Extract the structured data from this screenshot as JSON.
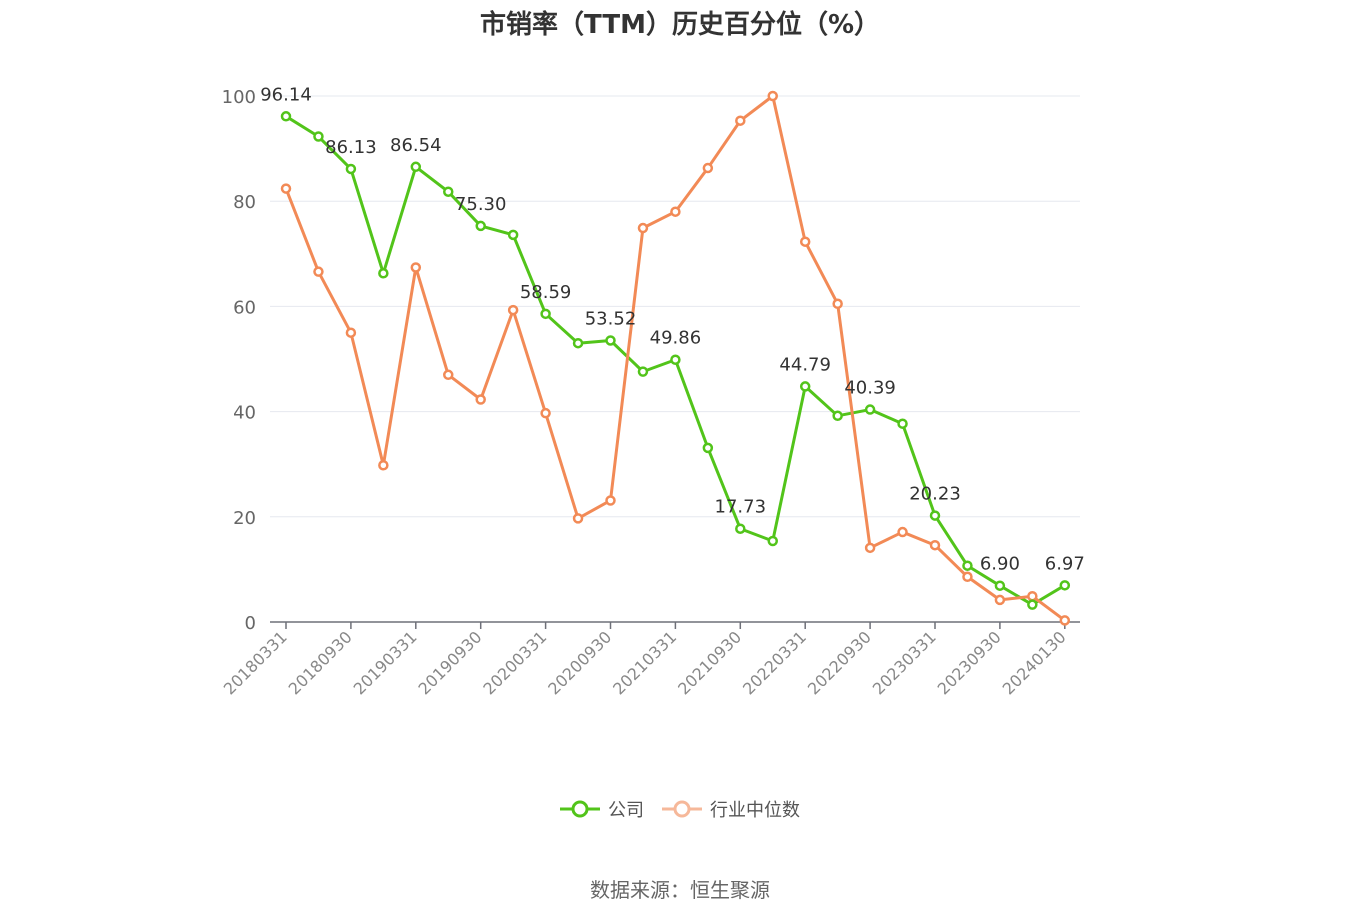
{
  "chart_data": {
    "type": "line",
    "title": "市销率（TTM）历史百分位（%）",
    "xlabel": "",
    "ylabel": "",
    "ylim": [
      0,
      100
    ],
    "yticks": [
      0,
      20,
      40,
      60,
      80,
      100
    ],
    "x": [
      "20180331",
      "20180630",
      "20180930",
      "20181231",
      "20190331",
      "20190630",
      "20190930",
      "20191231",
      "20200331",
      "20200630",
      "20200930",
      "20201231",
      "20210331",
      "20210630",
      "20210930",
      "20211231",
      "20220331",
      "20220630",
      "20220930",
      "20221231",
      "20230331",
      "20230630",
      "20230930",
      "20231231",
      "20240130"
    ],
    "xtick_labels": [
      "20180331",
      "20180930",
      "20190331",
      "20190930",
      "20200331",
      "20200930",
      "20210331",
      "20210930",
      "20220331",
      "20220930",
      "20230331",
      "20230930",
      "20240130"
    ],
    "series": [
      {
        "name": "公司",
        "color": "#52c41a",
        "values": [
          96.14,
          92.3,
          86.13,
          66.3,
          86.54,
          81.8,
          75.3,
          73.6,
          58.59,
          53.0,
          53.52,
          47.6,
          49.86,
          33.1,
          17.73,
          15.4,
          44.79,
          39.2,
          40.39,
          37.7,
          20.23,
          10.7,
          6.9,
          3.3,
          6.97
        ],
        "labels": [
          "96.14",
          "",
          "86.13",
          "",
          "86.54",
          "",
          "75.30",
          "",
          "58.59",
          "",
          "53.52",
          "",
          "49.86",
          "",
          "17.73",
          "",
          "44.79",
          "",
          "40.39",
          "",
          "20.23",
          "",
          "6.90",
          "",
          "6.97"
        ]
      },
      {
        "name": "行业中位数",
        "color": "#f28a56",
        "values": [
          82.4,
          66.6,
          55.0,
          29.8,
          67.4,
          47.0,
          42.3,
          59.3,
          39.7,
          19.7,
          23.1,
          74.9,
          78.0,
          86.3,
          95.3,
          100.0,
          72.3,
          60.5,
          14.1,
          17.1,
          14.6,
          8.6,
          4.2,
          4.9,
          0.3
        ]
      }
    ],
    "grid": true,
    "legend_position": "bottom-center"
  },
  "source_text": "数据来源：恒生聚源"
}
